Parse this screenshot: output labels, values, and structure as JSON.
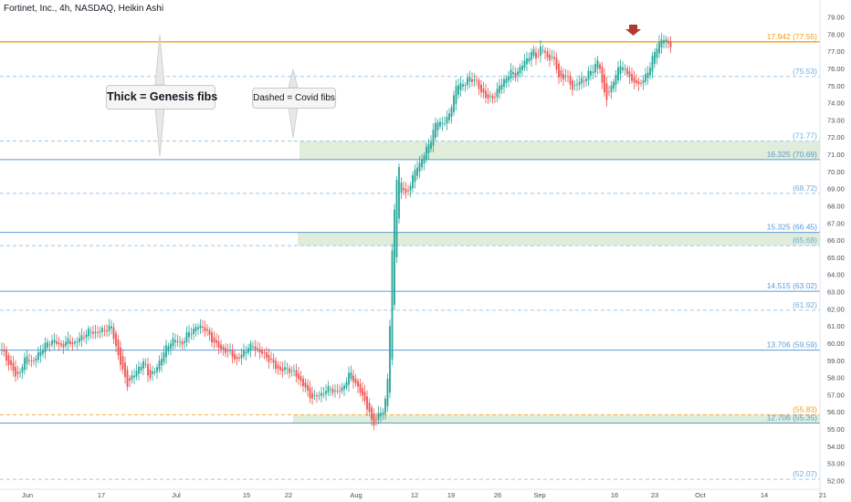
{
  "header": {
    "title": "Fortinet, Inc., 4h, NASDAQ, Heikin Ashi"
  },
  "annotations": {
    "thick_label": "Thick = Genesis fibs",
    "dashed_label": "Dashed = Covid fibs"
  },
  "colors": {
    "up_candle": "#26a69a",
    "down_candle": "#ef5350",
    "genesis_fib": "#5b9bd5",
    "covid_fib": "#5b9bd5",
    "top_fib": "#f39c12",
    "zone_fill": "#d9ead3",
    "arrow": "#b03a2e"
  },
  "chart_data": {
    "type": "candlestick",
    "title": "Fortinet, Inc., 4h, NASDAQ, Heikin Ashi",
    "ylim": [
      51.6,
      79.4
    ],
    "y_ticks": [
      "52.00",
      "53.00",
      "54.00",
      "55.00",
      "56.00",
      "57.00",
      "58.00",
      "59.00",
      "60.00",
      "61.00",
      "62.00",
      "63.00",
      "64.00",
      "65.00",
      "66.00",
      "67.00",
      "68.00",
      "69.00",
      "70.00",
      "71.00",
      "72.00",
      "73.00",
      "74.00",
      "75.00",
      "76.00",
      "77.00",
      "78.00",
      "79.00"
    ],
    "x_ticks": [
      "Jun",
      "17",
      "Jul",
      "15",
      "22",
      "Aug",
      "12",
      "19",
      "26",
      "Sep",
      "16",
      "23",
      "Oct",
      "14",
      "21"
    ],
    "fib_levels": [
      {
        "label": "17.942 (77.55)",
        "value": 77.55,
        "style": "solid",
        "kind": "top"
      },
      {
        "label": "(75.53)",
        "value": 75.53,
        "style": "dashed",
        "kind": "covid"
      },
      {
        "label": "(71.77)",
        "value": 71.77,
        "style": "dashed",
        "kind": "covid"
      },
      {
        "label": "16.325 (70.69)",
        "value": 70.69,
        "style": "solid",
        "kind": "genesis"
      },
      {
        "label": "(68.72)",
        "value": 68.72,
        "style": "dashed",
        "kind": "covid"
      },
      {
        "label": "15.325 (66.45)",
        "value": 66.45,
        "style": "solid",
        "kind": "genesis"
      },
      {
        "label": "(65.68)",
        "value": 65.68,
        "style": "dashed",
        "kind": "covid"
      },
      {
        "label": "14.515 (63.02)",
        "value": 63.02,
        "style": "solid",
        "kind": "genesis"
      },
      {
        "label": "(61.92)",
        "value": 61.92,
        "style": "dashed",
        "kind": "covid"
      },
      {
        "label": "13.706 (59.59)",
        "value": 59.59,
        "style": "solid",
        "kind": "genesis"
      },
      {
        "label": "(55.83)",
        "value": 55.83,
        "style": "dashed",
        "kind": "covid-orange"
      },
      {
        "label": "12.706 (55.35)",
        "value": 55.35,
        "style": "solid",
        "kind": "genesis"
      },
      {
        "label": "(52.07)",
        "value": 52.07,
        "style": "dashed",
        "kind": "covid"
      }
    ],
    "zones": [
      {
        "from": 70.69,
        "to": 71.77
      },
      {
        "from": 65.68,
        "to": 66.45
      },
      {
        "from": 55.35,
        "to": 55.83
      }
    ],
    "price_path": [
      [
        0,
        59.8
      ],
      [
        6,
        59.2
      ],
      [
        12,
        58.6
      ],
      [
        18,
        58.0
      ],
      [
        24,
        58.6
      ],
      [
        30,
        59.3
      ],
      [
        36,
        58.8
      ],
      [
        42,
        59.4
      ],
      [
        50,
        59.9
      ],
      [
        58,
        60.2
      ],
      [
        66,
        59.8
      ],
      [
        74,
        60.1
      ],
      [
        82,
        60.0
      ],
      [
        90,
        60.4
      ],
      [
        98,
        60.7
      ],
      [
        106,
        60.6
      ],
      [
        114,
        60.8
      ],
      [
        122,
        60.9
      ],
      [
        128,
        59.6
      ],
      [
        134,
        58.4
      ],
      [
        140,
        57.6
      ],
      [
        146,
        58.1
      ],
      [
        152,
        58.6
      ],
      [
        158,
        58.9
      ],
      [
        164,
        58.0
      ],
      [
        170,
        58.4
      ],
      [
        176,
        59.1
      ],
      [
        182,
        59.7
      ],
      [
        188,
        60.2
      ],
      [
        194,
        60.1
      ],
      [
        200,
        60.0
      ],
      [
        206,
        60.6
      ],
      [
        212,
        60.8
      ],
      [
        218,
        61.0
      ],
      [
        224,
        60.9
      ],
      [
        230,
        60.3
      ],
      [
        236,
        60.0
      ],
      [
        242,
        59.6
      ],
      [
        248,
        59.6
      ],
      [
        254,
        59.3
      ],
      [
        260,
        59.0
      ],
      [
        266,
        59.4
      ],
      [
        272,
        59.8
      ],
      [
        278,
        59.8
      ],
      [
        284,
        59.5
      ],
      [
        290,
        59.3
      ],
      [
        296,
        59.0
      ],
      [
        302,
        58.6
      ],
      [
        308,
        58.4
      ],
      [
        314,
        58.5
      ],
      [
        320,
        58.4
      ],
      [
        326,
        58.0
      ],
      [
        332,
        57.6
      ],
      [
        338,
        57.0
      ],
      [
        344,
        56.8
      ],
      [
        350,
        57.0
      ],
      [
        356,
        57.2
      ],
      [
        362,
        57.4
      ],
      [
        368,
        57.1
      ],
      [
        374,
        57.3
      ],
      [
        380,
        57.9
      ],
      [
        384,
        58.3
      ],
      [
        388,
        57.8
      ],
      [
        392,
        57.4
      ],
      [
        396,
        57.0
      ],
      [
        400,
        56.6
      ],
      [
        404,
        56.0
      ],
      [
        408,
        55.2
      ],
      [
        412,
        55.6
      ],
      [
        416,
        56.0
      ],
      [
        420,
        55.9
      ],
      [
        424,
        57.5
      ],
      [
        427,
        61.0
      ],
      [
        429,
        64.6
      ],
      [
        431,
        67.0
      ],
      [
        434,
        69.5
      ],
      [
        437,
        70.2
      ],
      [
        440,
        69.2
      ],
      [
        444,
        68.6
      ],
      [
        448,
        69.1
      ],
      [
        452,
        69.6
      ],
      [
        456,
        70.3
      ],
      [
        460,
        70.5
      ],
      [
        464,
        70.9
      ],
      [
        468,
        71.4
      ],
      [
        472,
        71.9
      ],
      [
        476,
        72.6
      ],
      [
        480,
        73.0
      ],
      [
        484,
        72.8
      ],
      [
        488,
        72.9
      ],
      [
        492,
        73.3
      ],
      [
        496,
        74.3
      ],
      [
        500,
        74.9
      ],
      [
        504,
        75.2
      ],
      [
        508,
        75.0
      ],
      [
        512,
        75.4
      ],
      [
        516,
        75.3
      ],
      [
        520,
        75.5
      ],
      [
        524,
        74.8
      ],
      [
        528,
        74.6
      ],
      [
        532,
        74.4
      ],
      [
        536,
        74.2
      ],
      [
        540,
        74.3
      ],
      [
        544,
        74.7
      ],
      [
        548,
        75.0
      ],
      [
        552,
        75.3
      ],
      [
        556,
        75.6
      ],
      [
        560,
        75.8
      ],
      [
        564,
        75.6
      ],
      [
        568,
        75.9
      ],
      [
        572,
        76.2
      ],
      [
        576,
        76.5
      ],
      [
        580,
        76.8
      ],
      [
        584,
        77.0
      ],
      [
        588,
        76.6
      ],
      [
        592,
        77.2
      ],
      [
        596,
        77.0
      ],
      [
        600,
        76.5
      ],
      [
        604,
        76.8
      ],
      [
        608,
        76.2
      ],
      [
        612,
        75.6
      ],
      [
        616,
        75.3
      ],
      [
        620,
        75.6
      ],
      [
        624,
        75.2
      ],
      [
        628,
        74.8
      ],
      [
        632,
        75.0
      ],
      [
        636,
        75.5
      ],
      [
        640,
        75.2
      ],
      [
        644,
        75.7
      ],
      [
        648,
        75.9
      ],
      [
        652,
        76.2
      ],
      [
        656,
        76.4
      ],
      [
        660,
        75.0
      ],
      [
        664,
        74.2
      ],
      [
        668,
        74.6
      ],
      [
        672,
        75.4
      ],
      [
        676,
        75.8
      ],
      [
        680,
        76.2
      ],
      [
        684,
        76.0
      ],
      [
        688,
        75.7
      ],
      [
        692,
        75.1
      ],
      [
        696,
        75.4
      ],
      [
        700,
        74.9
      ],
      [
        704,
        75.3
      ],
      [
        708,
        75.7
      ],
      [
        712,
        76.1
      ],
      [
        716,
        76.8
      ],
      [
        720,
        77.4
      ],
      [
        724,
        77.6
      ],
      [
        728,
        77.7
      ],
      [
        732,
        77.5
      ],
      [
        736,
        77.3
      ]
    ]
  }
}
